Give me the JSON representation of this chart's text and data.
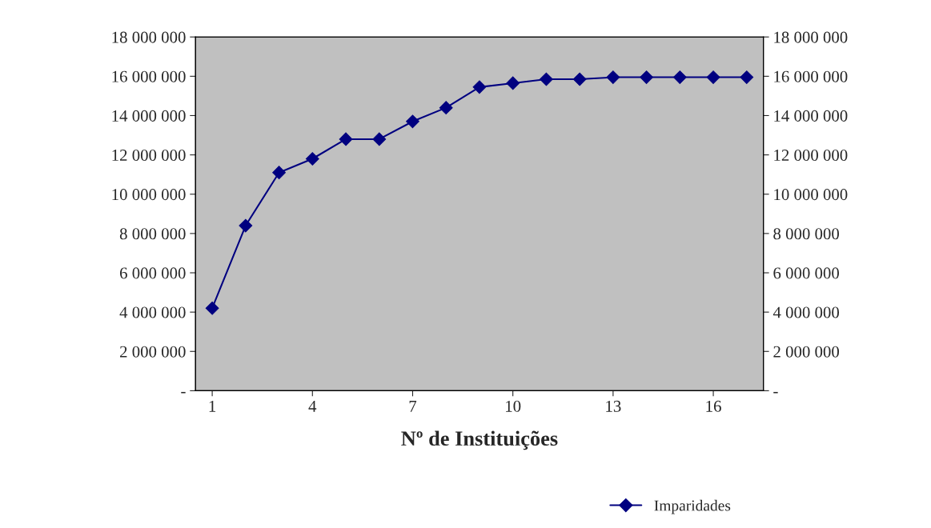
{
  "chart_data": {
    "type": "line",
    "xlabel": "Nº de Instituições",
    "categories": [
      "1",
      null,
      null,
      "4",
      null,
      null,
      "7",
      null,
      null,
      "10",
      null,
      null,
      "13",
      null,
      null,
      "16",
      null
    ],
    "series": [
      {
        "name": "Imparidades",
        "color": "#000080",
        "axis": "y",
        "values": [
          4200000,
          8400000,
          11100000,
          11800000,
          12800000,
          12800000,
          13700000,
          14400000,
          15450000,
          15650000,
          15850000,
          15850000,
          15950000,
          15950000,
          15950000,
          15950000,
          15950000
        ]
      }
    ],
    "ylim": [
      0,
      18000000
    ],
    "yticks": [
      {
        "value": 0,
        "label": "-"
      },
      {
        "value": 2000000,
        "label": "2 000 000"
      },
      {
        "value": 4000000,
        "label": "4 000 000"
      },
      {
        "value": 6000000,
        "label": "6 000 000"
      },
      {
        "value": 8000000,
        "label": "8 000 000"
      },
      {
        "value": 10000000,
        "label": "10 000 000"
      },
      {
        "value": 12000000,
        "label": "12 000 000"
      },
      {
        "value": 14000000,
        "label": "14 000 000"
      },
      {
        "value": 16000000,
        "label": "16 000 000"
      },
      {
        "value": 18000000,
        "label": "18 000 000"
      }
    ],
    "y2lim": [
      0,
      18000000
    ],
    "y2ticks": [
      {
        "value": 0,
        "label": "-"
      },
      {
        "value": 2000000,
        "label": "2 000 000"
      },
      {
        "value": 4000000,
        "label": "4 000 000"
      },
      {
        "value": 6000000,
        "label": "6 000 000"
      },
      {
        "value": 8000000,
        "label": "8 000 000"
      },
      {
        "value": 10000000,
        "label": "10 000 000"
      },
      {
        "value": 12000000,
        "label": "12 000 000"
      },
      {
        "value": 14000000,
        "label": "14 000 000"
      },
      {
        "value": 16000000,
        "label": "16 000 000"
      },
      {
        "value": 18000000,
        "label": "18 000 000"
      }
    ],
    "marker": "diamond",
    "line_style": "solid",
    "grid": false,
    "legend": "bottom right"
  }
}
